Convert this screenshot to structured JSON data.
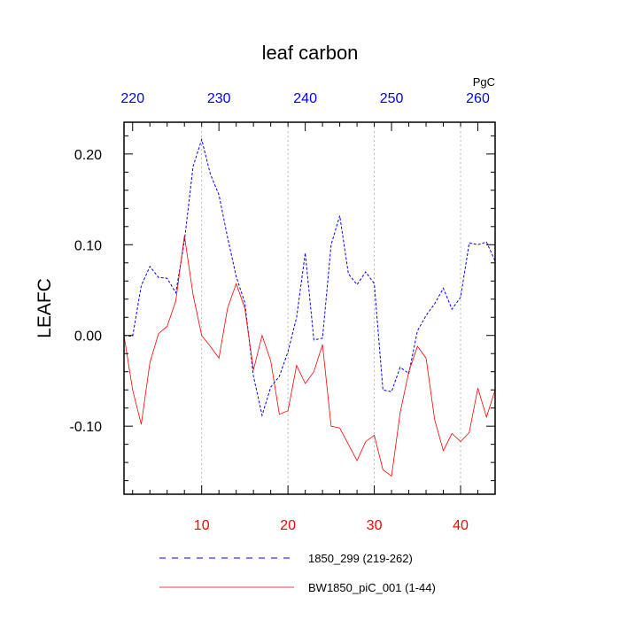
{
  "chart_data": {
    "type": "line",
    "title": "leaf carbon",
    "ylabel": "LEAFC",
    "units": "PgC",
    "xlim": [
      1,
      44
    ],
    "ylim": [
      -0.175,
      0.235
    ],
    "x_top_lim": [
      219,
      262
    ],
    "grid": "vertical dotted at bottom ticks",
    "x_bottom_ticks": [
      10,
      20,
      30,
      40
    ],
    "x_top_ticks": [
      220,
      230,
      240,
      250,
      260
    ],
    "y_ticks": [
      {
        "value": 0.2,
        "label": "0.20"
      },
      {
        "value": 0.1,
        "label": "0.10"
      },
      {
        "value": 0.0,
        "label": "0.00"
      },
      {
        "value": -0.1,
        "label": "-0.10"
      }
    ],
    "x": [
      1,
      2,
      3,
      4,
      5,
      6,
      7,
      8,
      9,
      10,
      11,
      12,
      13,
      14,
      15,
      16,
      17,
      18,
      19,
      20,
      21,
      22,
      23,
      24,
      25,
      26,
      27,
      28,
      29,
      30,
      31,
      32,
      33,
      34,
      35,
      36,
      37,
      38,
      39,
      40,
      41,
      42,
      43,
      44
    ],
    "series": [
      {
        "name": "1850_299 (219-262)",
        "axis": "top",
        "color": "#0000ff",
        "style": "dashed",
        "values": [
          0.0,
          -0.001,
          0.055,
          0.076,
          0.064,
          0.063,
          0.047,
          0.104,
          0.186,
          0.216,
          0.178,
          0.155,
          0.108,
          0.065,
          0.036,
          -0.045,
          -0.088,
          -0.057,
          -0.045,
          -0.018,
          0.02,
          0.091,
          -0.005,
          -0.003,
          0.1,
          0.132,
          0.068,
          0.056,
          0.07,
          0.057,
          -0.06,
          -0.062,
          -0.035,
          -0.042,
          0.005,
          0.022,
          0.035,
          0.052,
          0.029,
          0.042,
          0.102,
          0.1,
          0.103,
          0.082
        ]
      },
      {
        "name": "BW1850_piC_001 (1-44)",
        "axis": "bottom",
        "color": "#ff0000",
        "style": "solid",
        "values": [
          0.0,
          -0.06,
          -0.098,
          -0.03,
          0.002,
          0.01,
          0.038,
          0.11,
          0.045,
          0.0,
          -0.012,
          -0.025,
          0.03,
          0.057,
          0.03,
          -0.038,
          0.0,
          -0.028,
          -0.087,
          -0.083,
          -0.033,
          -0.053,
          -0.04,
          -0.01,
          -0.1,
          -0.102,
          -0.12,
          -0.138,
          -0.117,
          -0.11,
          -0.148,
          -0.155,
          -0.085,
          -0.04,
          -0.012,
          -0.025,
          -0.093,
          -0.127,
          -0.108,
          -0.117,
          -0.107,
          -0.058,
          -0.09,
          -0.06
        ]
      }
    ]
  },
  "legend": {
    "items": [
      {
        "label": "1850_299 (219-262)",
        "color": "#0000ff",
        "style": "dashed"
      },
      {
        "label": "BW1850_piC_001 (1-44)",
        "color": "#ff0000",
        "style": "solid"
      }
    ]
  }
}
